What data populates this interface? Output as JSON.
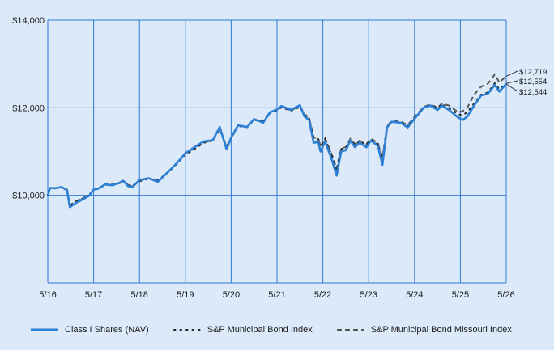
{
  "colors": {
    "background": "#dbe9f9",
    "grid": "#2e7bd6",
    "fund": "#2b7fd4",
    "broad_index": "#222222",
    "state_index": "#555555"
  },
  "chart_data": {
    "type": "line",
    "title": "",
    "xlabel": "",
    "ylabel": "",
    "x_ticks": [
      "5/16",
      "5/17",
      "5/18",
      "5/19",
      "5/20",
      "5/21",
      "5/22",
      "5/23",
      "5/24",
      "5/25",
      "5/26"
    ],
    "y_ticks": [
      {
        "value": 10000,
        "label": "$10,000"
      },
      {
        "value": 12000,
        "label": "$12,000"
      },
      {
        "value": 14000,
        "label": "$14,000"
      }
    ],
    "xlim": [
      0,
      10
    ],
    "ylim": [
      8000,
      14000
    ],
    "grid": true,
    "legend_position": "bottom",
    "end_labels": [
      "$12,719",
      "$12,554",
      "$12,544"
    ],
    "series": [
      {
        "name": "Class I Shares (NAV)",
        "style": "solid",
        "values": [
          [
            0.0,
            10000
          ],
          [
            0.05,
            10170
          ],
          [
            0.15,
            10160
          ],
          [
            0.3,
            10190
          ],
          [
            0.42,
            10120
          ],
          [
            0.48,
            9730
          ],
          [
            0.6,
            9820
          ],
          [
            0.75,
            9900
          ],
          [
            0.9,
            9990
          ],
          [
            1.0,
            10130
          ],
          [
            1.1,
            10150
          ],
          [
            1.25,
            10250
          ],
          [
            1.4,
            10230
          ],
          [
            1.55,
            10280
          ],
          [
            1.65,
            10330
          ],
          [
            1.75,
            10210
          ],
          [
            1.85,
            10190
          ],
          [
            2.0,
            10350
          ],
          [
            2.2,
            10390
          ],
          [
            2.4,
            10310
          ],
          [
            2.6,
            10510
          ],
          [
            2.8,
            10720
          ],
          [
            3.0,
            10960
          ],
          [
            3.2,
            11100
          ],
          [
            3.4,
            11230
          ],
          [
            3.6,
            11260
          ],
          [
            3.75,
            11560
          ],
          [
            3.9,
            11050
          ],
          [
            4.0,
            11320
          ],
          [
            4.15,
            11600
          ],
          [
            4.35,
            11560
          ],
          [
            4.5,
            11740
          ],
          [
            4.7,
            11660
          ],
          [
            4.85,
            11900
          ],
          [
            5.0,
            11960
          ],
          [
            5.1,
            12040
          ],
          [
            5.3,
            11950
          ],
          [
            5.5,
            12060
          ],
          [
            5.6,
            11800
          ],
          [
            5.7,
            11720
          ],
          [
            5.8,
            11200
          ],
          [
            5.9,
            11220
          ],
          [
            5.95,
            11000
          ],
          [
            6.05,
            11230
          ],
          [
            6.2,
            10800
          ],
          [
            6.3,
            10450
          ],
          [
            6.4,
            11000
          ],
          [
            6.5,
            11030
          ],
          [
            6.6,
            11250
          ],
          [
            6.7,
            11100
          ],
          [
            6.8,
            11200
          ],
          [
            6.95,
            11100
          ],
          [
            7.05,
            11250
          ],
          [
            7.2,
            11130
          ],
          [
            7.3,
            10700
          ],
          [
            7.4,
            11550
          ],
          [
            7.5,
            11680
          ],
          [
            7.7,
            11660
          ],
          [
            7.85,
            11550
          ],
          [
            8.0,
            11750
          ],
          [
            8.2,
            12000
          ],
          [
            8.35,
            12050
          ],
          [
            8.5,
            11950
          ],
          [
            8.6,
            12050
          ],
          [
            8.75,
            11950
          ],
          [
            8.95,
            11780
          ],
          [
            9.05,
            11720
          ],
          [
            9.15,
            11800
          ],
          [
            9.3,
            12050
          ],
          [
            9.45,
            12280
          ],
          [
            9.6,
            12320
          ],
          [
            9.75,
            12520
          ],
          [
            9.85,
            12370
          ],
          [
            10.0,
            12544
          ]
        ]
      },
      {
        "name": "S&P Municipal Bond Index",
        "style": "dotted",
        "values": [
          [
            0.0,
            10000
          ],
          [
            0.05,
            10160
          ],
          [
            0.15,
            10160
          ],
          [
            0.3,
            10180
          ],
          [
            0.42,
            10120
          ],
          [
            0.48,
            9760
          ],
          [
            0.6,
            9850
          ],
          [
            0.75,
            9920
          ],
          [
            0.9,
            10000
          ],
          [
            1.0,
            10120
          ],
          [
            1.1,
            10150
          ],
          [
            1.25,
            10240
          ],
          [
            1.4,
            10240
          ],
          [
            1.55,
            10270
          ],
          [
            1.65,
            10320
          ],
          [
            1.75,
            10230
          ],
          [
            1.85,
            10210
          ],
          [
            2.0,
            10320
          ],
          [
            2.2,
            10380
          ],
          [
            2.4,
            10330
          ],
          [
            2.6,
            10500
          ],
          [
            2.8,
            10700
          ],
          [
            3.0,
            10930
          ],
          [
            3.2,
            11050
          ],
          [
            3.4,
            11200
          ],
          [
            3.6,
            11250
          ],
          [
            3.75,
            11500
          ],
          [
            3.9,
            11100
          ],
          [
            4.0,
            11300
          ],
          [
            4.15,
            11580
          ],
          [
            4.35,
            11560
          ],
          [
            4.5,
            11720
          ],
          [
            4.7,
            11680
          ],
          [
            4.85,
            11880
          ],
          [
            5.0,
            11940
          ],
          [
            5.1,
            12010
          ],
          [
            5.3,
            11930
          ],
          [
            5.5,
            12020
          ],
          [
            5.6,
            11830
          ],
          [
            5.7,
            11760
          ],
          [
            5.8,
            11300
          ],
          [
            5.9,
            11280
          ],
          [
            5.95,
            11100
          ],
          [
            6.05,
            11280
          ],
          [
            6.2,
            10900
          ],
          [
            6.3,
            10580
          ],
          [
            6.4,
            11060
          ],
          [
            6.5,
            11080
          ],
          [
            6.6,
            11270
          ],
          [
            6.7,
            11150
          ],
          [
            6.8,
            11230
          ],
          [
            6.95,
            11150
          ],
          [
            7.05,
            11270
          ],
          [
            7.2,
            11180
          ],
          [
            7.3,
            10830
          ],
          [
            7.4,
            11560
          ],
          [
            7.5,
            11680
          ],
          [
            7.7,
            11670
          ],
          [
            7.85,
            11580
          ],
          [
            8.0,
            11770
          ],
          [
            8.2,
            12000
          ],
          [
            8.35,
            12060
          ],
          [
            8.5,
            11980
          ],
          [
            8.6,
            12080
          ],
          [
            8.75,
            12000
          ],
          [
            8.95,
            11850
          ],
          [
            9.05,
            11830
          ],
          [
            9.15,
            11900
          ],
          [
            9.3,
            12100
          ],
          [
            9.45,
            12300
          ],
          [
            9.6,
            12350
          ],
          [
            9.75,
            12560
          ],
          [
            9.85,
            12420
          ],
          [
            10.0,
            12554
          ]
        ]
      },
      {
        "name": "S&P Municipal Bond Missouri Index",
        "style": "dashed",
        "values": [
          [
            0.0,
            10000
          ],
          [
            0.05,
            10170
          ],
          [
            0.15,
            10170
          ],
          [
            0.3,
            10190
          ],
          [
            0.42,
            10130
          ],
          [
            0.48,
            9770
          ],
          [
            0.6,
            9860
          ],
          [
            0.75,
            9930
          ],
          [
            0.9,
            10010
          ],
          [
            1.0,
            10130
          ],
          [
            1.1,
            10160
          ],
          [
            1.25,
            10250
          ],
          [
            1.4,
            10250
          ],
          [
            1.55,
            10280
          ],
          [
            1.65,
            10340
          ],
          [
            1.75,
            10240
          ],
          [
            1.85,
            10220
          ],
          [
            2.0,
            10340
          ],
          [
            2.2,
            10390
          ],
          [
            2.4,
            10340
          ],
          [
            2.6,
            10510
          ],
          [
            2.8,
            10710
          ],
          [
            3.0,
            10950
          ],
          [
            3.2,
            11070
          ],
          [
            3.4,
            11210
          ],
          [
            3.6,
            11260
          ],
          [
            3.75,
            11520
          ],
          [
            3.9,
            11110
          ],
          [
            4.0,
            11310
          ],
          [
            4.15,
            11590
          ],
          [
            4.35,
            11570
          ],
          [
            4.5,
            11730
          ],
          [
            4.7,
            11690
          ],
          [
            4.85,
            11900
          ],
          [
            5.0,
            11960
          ],
          [
            5.1,
            12030
          ],
          [
            5.3,
            11940
          ],
          [
            5.5,
            12040
          ],
          [
            5.6,
            11850
          ],
          [
            5.7,
            11780
          ],
          [
            5.8,
            11320
          ],
          [
            5.9,
            11300
          ],
          [
            5.95,
            11120
          ],
          [
            6.05,
            11300
          ],
          [
            6.2,
            10920
          ],
          [
            6.3,
            10600
          ],
          [
            6.4,
            11080
          ],
          [
            6.5,
            11100
          ],
          [
            6.6,
            11290
          ],
          [
            6.7,
            11170
          ],
          [
            6.8,
            11250
          ],
          [
            6.95,
            11170
          ],
          [
            7.05,
            11290
          ],
          [
            7.2,
            11200
          ],
          [
            7.3,
            10850
          ],
          [
            7.4,
            11580
          ],
          [
            7.5,
            11700
          ],
          [
            7.7,
            11690
          ],
          [
            7.85,
            11600
          ],
          [
            8.0,
            11790
          ],
          [
            8.2,
            12020
          ],
          [
            8.35,
            12080
          ],
          [
            8.5,
            12000
          ],
          [
            8.6,
            12100
          ],
          [
            8.75,
            12050
          ],
          [
            8.95,
            11900
          ],
          [
            9.05,
            11920
          ],
          [
            9.15,
            12000
          ],
          [
            9.3,
            12300
          ],
          [
            9.45,
            12480
          ],
          [
            9.6,
            12550
          ],
          [
            9.75,
            12760
          ],
          [
            9.85,
            12580
          ],
          [
            10.0,
            12719
          ]
        ]
      }
    ]
  }
}
